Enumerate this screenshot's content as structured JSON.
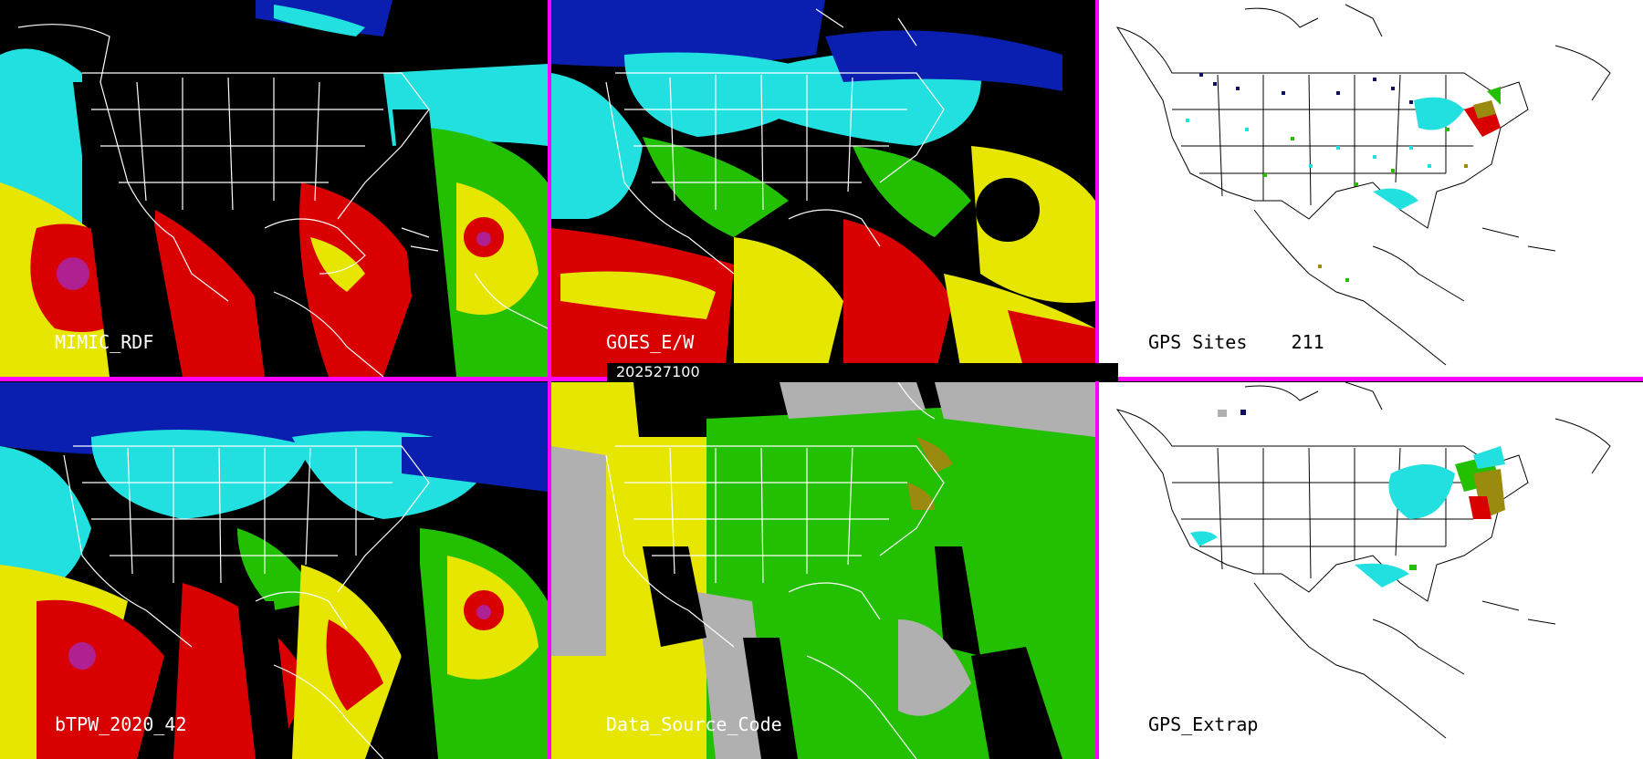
{
  "timestamp": "202527100",
  "colors": {
    "divider": "#ff00ff",
    "cyan": "#22e0e0",
    "blue": "#0a1fb0",
    "green": "#22c000",
    "yellow": "#e6e600",
    "red": "#d80000",
    "gray": "#b0b0b0",
    "olive": "#9a8a10",
    "navy": "#101060"
  },
  "panels": [
    {
      "id": "mimic-rdf",
      "label": "MIMIC_RDF"
    },
    {
      "id": "goes-ew",
      "label": "GOES_E/W"
    },
    {
      "id": "gps-sites",
      "label": "GPS Sites",
      "count": "211"
    },
    {
      "id": "btpw",
      "label": "bTPW_2020_42"
    },
    {
      "id": "data-source",
      "label": "Data_Source_Code"
    },
    {
      "id": "gps-extrap",
      "label": "GPS_Extrap"
    }
  ]
}
